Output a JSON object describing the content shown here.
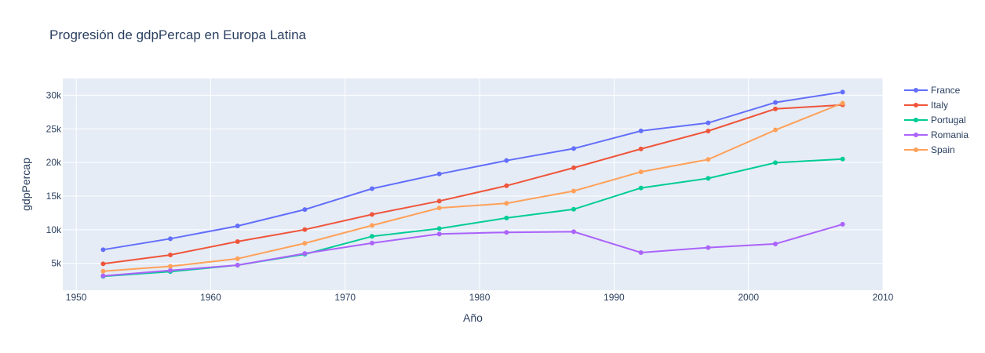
{
  "chart_data": {
    "type": "line",
    "title": "Progresión de gdpPercap en Europa Latina",
    "xlabel": "Año",
    "ylabel": "gdpPercap",
    "xlim": [
      1949,
      2010
    ],
    "ylim": [
      1000,
      32500
    ],
    "x_ticks": [
      1950,
      1960,
      1970,
      1980,
      1990,
      2000,
      2010
    ],
    "y_ticks": [
      5000,
      10000,
      15000,
      20000,
      25000,
      30000
    ],
    "y_tick_labels": [
      "5k",
      "10k",
      "15k",
      "20k",
      "25k",
      "30k"
    ],
    "grid": true,
    "legend_position": "right",
    "x": [
      1952,
      1957,
      1962,
      1967,
      1972,
      1977,
      1982,
      1987,
      1992,
      1997,
      2002,
      2007
    ],
    "series": [
      {
        "name": "France",
        "color": "#636efa",
        "values": [
          7030,
          8660,
          10560,
          13000,
          16110,
          18290,
          20290,
          22070,
          24700,
          25890,
          28930,
          30470
        ]
      },
      {
        "name": "Italy",
        "color": "#ef553b",
        "values": [
          4930,
          6250,
          8240,
          10020,
          12270,
          14260,
          16540,
          19210,
          22010,
          24680,
          27970,
          28570
        ]
      },
      {
        "name": "Portugal",
        "color": "#00cc96",
        "values": [
          3070,
          3770,
          4730,
          6360,
          9020,
          10170,
          11750,
          13040,
          16210,
          17640,
          19970,
          20510
        ]
      },
      {
        "name": "Romania",
        "color": "#ab63fa",
        "values": [
          3140,
          3940,
          4730,
          6470,
          8010,
          9360,
          9610,
          9700,
          6600,
          7350,
          7890,
          10810
        ]
      },
      {
        "name": "Spain",
        "color": "#ffa15a",
        "values": [
          3830,
          4560,
          5690,
          7990,
          10640,
          13240,
          13930,
          15760,
          18600,
          20450,
          24840,
          28820
        ]
      }
    ]
  }
}
